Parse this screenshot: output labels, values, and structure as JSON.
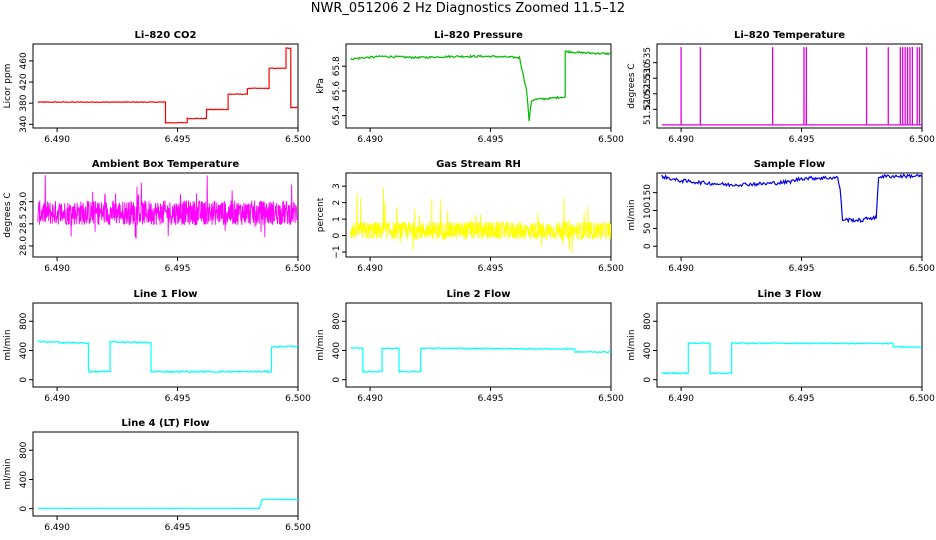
{
  "title": "NWR_051206  2 Hz Diagnostics Zoomed 11.5–12",
  "chart_data": [
    {
      "type": "line",
      "title": "Li–820 CO2",
      "xlabel": "",
      "ylabel": "Licor ppm",
      "color": "#ff0000",
      "xlim": [
        6.489,
        6.5
      ],
      "ylim": [
        333,
        492
      ],
      "xticks": [
        6.49,
        6.495,
        6.5
      ],
      "xtick_labels": [
        "6.490",
        "6.495",
        "6.500"
      ],
      "yticks": [
        340,
        380,
        420,
        460
      ],
      "ytick_labels": [
        "340",
        "380",
        "420",
        "460"
      ],
      "x": [
        6.4892,
        6.4945,
        6.4945,
        6.4954,
        6.4954,
        6.4962,
        6.4962,
        6.4971,
        6.4971,
        6.4979,
        6.4979,
        6.4988,
        6.4988,
        6.4995,
        6.4995,
        6.4997,
        6.4997,
        6.5
      ],
      "y": [
        382,
        382,
        343,
        343,
        351,
        351,
        368,
        368,
        397,
        397,
        408,
        408,
        446,
        446,
        484,
        484,
        372,
        372
      ],
      "noise": 0.6
    },
    {
      "type": "line",
      "title": "Li–820 Pressure",
      "xlabel": "",
      "ylabel": "kPa",
      "color": "#00bb00",
      "xlim": [
        6.489,
        6.5
      ],
      "ylim": [
        65.3,
        65.98
      ],
      "xticks": [
        6.49,
        6.495,
        6.5
      ],
      "xtick_labels": [
        "6.490",
        "6.495",
        "6.500"
      ],
      "yticks": [
        65.4,
        65.6,
        65.8
      ],
      "ytick_labels": [
        "65.4",
        "65.6",
        "65.8"
      ],
      "x": [
        6.4892,
        6.4905,
        6.492,
        6.4935,
        6.495,
        6.4962,
        6.4965,
        6.4966,
        6.4967,
        6.4968,
        6.4975,
        6.4979,
        6.4981,
        6.4981,
        6.4987,
        6.5
      ],
      "y": [
        65.86,
        65.88,
        65.87,
        65.88,
        65.88,
        65.87,
        65.6,
        65.36,
        65.52,
        65.53,
        65.54,
        65.55,
        65.55,
        65.92,
        65.91,
        65.9
      ],
      "noise": 0.008
    },
    {
      "type": "spikes",
      "title": "Li–820 Temperature",
      "xlabel": "",
      "ylabel": "degrees C",
      "color": "#dd00dd",
      "xlim": [
        6.489,
        6.5
      ],
      "ylim": [
        51.514,
        51.541
      ],
      "xticks": [
        6.49,
        6.495,
        6.5
      ],
      "xtick_labels": [
        "6.490",
        "6.495",
        "6.500"
      ],
      "yticks": [
        51.52,
        51.525,
        51.53,
        51.535
      ],
      "ytick_labels": [
        "51.520",
        "51.525",
        "51.530",
        "51.535"
      ],
      "baseline": 51.515,
      "peak": 51.54,
      "spikes": [
        6.49,
        6.4908,
        6.4938,
        6.4951,
        6.4952,
        6.4977,
        6.4986,
        6.4991,
        6.4992,
        6.4993,
        6.4994,
        6.4995,
        6.4996,
        6.4998,
        6.4999
      ],
      "small_spikes": [
        [
          6.4952,
          51.522
        ]
      ]
    },
    {
      "type": "noise",
      "title": "Ambient Box Temperature",
      "xlabel": "",
      "ylabel": "degrees C",
      "color": "#ff00ff",
      "xlim": [
        6.489,
        6.5
      ],
      "ylim": [
        27.75,
        29.65
      ],
      "xticks": [
        6.49,
        6.495,
        6.5
      ],
      "xtick_labels": [
        "6.490",
        "6.495",
        "6.500"
      ],
      "yticks": [
        28.0,
        28.5,
        29.0
      ],
      "ytick_labels": [
        "28.0",
        "28.5",
        "29.0"
      ],
      "x_range": [
        6.4892,
        6.5
      ],
      "mean": 28.75,
      "amplitude": 0.28,
      "occasional_spikes": 0.55
    },
    {
      "type": "noise",
      "title": "Gas Stream RH",
      "xlabel": "",
      "ylabel": "percent",
      "color": "#ffff00",
      "xlim": [
        6.489,
        6.5
      ],
      "ylim": [
        -1.3,
        3.8
      ],
      "xticks": [
        6.49,
        6.495,
        6.5
      ],
      "xtick_labels": [
        "6.490",
        "6.495",
        "6.500"
      ],
      "yticks": [
        -1,
        0,
        1,
        2,
        3
      ],
      "ytick_labels": [
        "−1",
        "0",
        "1",
        "2",
        "3"
      ],
      "x_range": [
        6.4892,
        6.5
      ],
      "mean": 0.3,
      "amplitude": 0.55,
      "occasional_spikes": 2.2
    },
    {
      "type": "line",
      "title": "Sample Flow",
      "xlabel": "",
      "ylabel": "ml/min",
      "color": "#0000ee",
      "xlim": [
        6.489,
        6.5
      ],
      "ylim": [
        -30,
        205
      ],
      "xticks": [
        6.49,
        6.495,
        6.5
      ],
      "xtick_labels": [
        "6.490",
        "6.495",
        "6.500"
      ],
      "yticks": [
        0,
        50,
        100,
        150
      ],
      "ytick_labels": [
        "0",
        "50",
        "100",
        "150"
      ],
      "x": [
        6.4892,
        6.4898,
        6.4905,
        6.492,
        6.4935,
        6.4945,
        6.495,
        6.4965,
        6.4966,
        6.4967,
        6.4975,
        6.4978,
        6.4981,
        6.4982,
        6.4988,
        6.5
      ],
      "y": [
        196,
        185,
        180,
        172,
        175,
        180,
        190,
        192,
        160,
        75,
        72,
        80,
        78,
        195,
        196,
        197
      ],
      "noise": 5
    },
    {
      "type": "line",
      "title": "Line 1 Flow",
      "xlabel": "",
      "ylabel": "ml/min",
      "color": "#00ffff",
      "xlim": [
        6.489,
        6.5
      ],
      "ylim": [
        -100,
        1050
      ],
      "xticks": [
        6.49,
        6.495,
        6.5
      ],
      "xtick_labels": [
        "6.490",
        "6.495",
        "6.500"
      ],
      "yticks": [
        0,
        400,
        800
      ],
      "ytick_labels": [
        "0",
        "400",
        "800"
      ],
      "x": [
        6.4892,
        6.4913,
        6.4913,
        6.4922,
        6.4922,
        6.4939,
        6.4939,
        6.4989,
        6.4989,
        6.5
      ],
      "y": [
        520,
        500,
        110,
        110,
        520,
        505,
        110,
        110,
        450,
        460
      ],
      "noise": 10
    },
    {
      "type": "line",
      "title": "Line 2 Flow",
      "xlabel": "",
      "ylabel": "ml/min",
      "color": "#00ffff",
      "xlim": [
        6.489,
        6.5
      ],
      "ylim": [
        -100,
        1050
      ],
      "xticks": [
        6.49,
        6.495,
        6.5
      ],
      "xtick_labels": [
        "6.490",
        "6.495",
        "6.500"
      ],
      "yticks": [
        0,
        400,
        800
      ],
      "ytick_labels": [
        "0",
        "400",
        "800"
      ],
      "x": [
        6.4892,
        6.4897,
        6.4897,
        6.4905,
        6.4905,
        6.4912,
        6.4912,
        6.4921,
        6.4921,
        6.4985,
        6.4985,
        6.5
      ],
      "y": [
        430,
        430,
        110,
        110,
        430,
        430,
        110,
        110,
        430,
        420,
        380,
        380
      ],
      "noise": 8
    },
    {
      "type": "line",
      "title": "Line 3 Flow",
      "xlabel": "",
      "ylabel": "ml/min",
      "color": "#00ffff",
      "xlim": [
        6.489,
        6.5
      ],
      "ylim": [
        -100,
        1050
      ],
      "xticks": [
        6.49,
        6.495,
        6.5
      ],
      "xtick_labels": [
        "6.490",
        "6.495",
        "6.500"
      ],
      "yticks": [
        0,
        400,
        800
      ],
      "ytick_labels": [
        "0",
        "400",
        "800"
      ],
      "x": [
        6.4892,
        6.4903,
        6.4903,
        6.4912,
        6.4912,
        6.4921,
        6.4921,
        6.4988,
        6.4988,
        6.5
      ],
      "y": [
        90,
        90,
        500,
        500,
        90,
        90,
        500,
        495,
        450,
        450
      ],
      "noise": 8
    },
    {
      "type": "line",
      "title": "Line 4 (LT) Flow",
      "xlabel": "",
      "ylabel": "ml/min",
      "color": "#00ffff",
      "xlim": [
        6.489,
        6.5
      ],
      "ylim": [
        -100,
        1050
      ],
      "xticks": [
        6.49,
        6.495,
        6.5
      ],
      "xtick_labels": [
        "6.490",
        "6.495",
        "6.500"
      ],
      "yticks": [
        0,
        400,
        800
      ],
      "ytick_labels": [
        "0",
        "400",
        "800"
      ],
      "x": [
        6.4892,
        6.4984,
        6.4985,
        6.4986,
        6.5
      ],
      "y": [
        5,
        5,
        120,
        130,
        125
      ],
      "noise": 2
    }
  ]
}
